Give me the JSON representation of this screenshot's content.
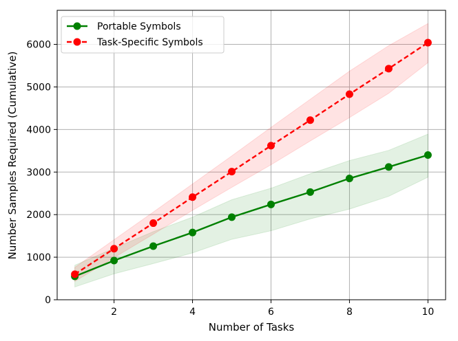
{
  "chart_data": {
    "type": "line",
    "title": "",
    "xlabel": "Number of Tasks",
    "ylabel": "Number Samples Required (Cumulative)",
    "xlim": [
      0.55,
      10.45
    ],
    "ylim": [
      0,
      6800
    ],
    "xticks": [
      2,
      4,
      6,
      8,
      10
    ],
    "yticks": [
      0,
      1000,
      2000,
      3000,
      4000,
      5000,
      6000
    ],
    "grid": true,
    "legend_position": "top-left",
    "x": [
      1,
      2,
      3,
      4,
      5,
      6,
      7,
      8,
      9,
      10
    ],
    "series": [
      {
        "name": "Portable Symbols",
        "color": "#008000",
        "line_style": "solid",
        "marker": "circle",
        "values": [
          550,
          920,
          1260,
          1580,
          1940,
          2240,
          2530,
          2850,
          3120,
          3400
        ],
        "lower": [
          300,
          610,
          850,
          1100,
          1420,
          1620,
          1900,
          2130,
          2430,
          2880
        ],
        "upper": [
          810,
          1210,
          1600,
          1940,
          2350,
          2620,
          2960,
          3270,
          3510,
          3890
        ]
      },
      {
        "name": "Task-Specific Symbols",
        "color": "#ff0000",
        "line_style": "dashed",
        "marker": "circle",
        "values": [
          600,
          1200,
          1800,
          2410,
          3010,
          3620,
          4220,
          4830,
          5430,
          6040
        ],
        "lower": [
          430,
          990,
          1540,
          2100,
          2640,
          3170,
          3730,
          4280,
          4850,
          5570
        ],
        "upper": [
          760,
          1410,
          2060,
          2720,
          3380,
          4050,
          4710,
          5370,
          5970,
          6490
        ]
      }
    ]
  }
}
